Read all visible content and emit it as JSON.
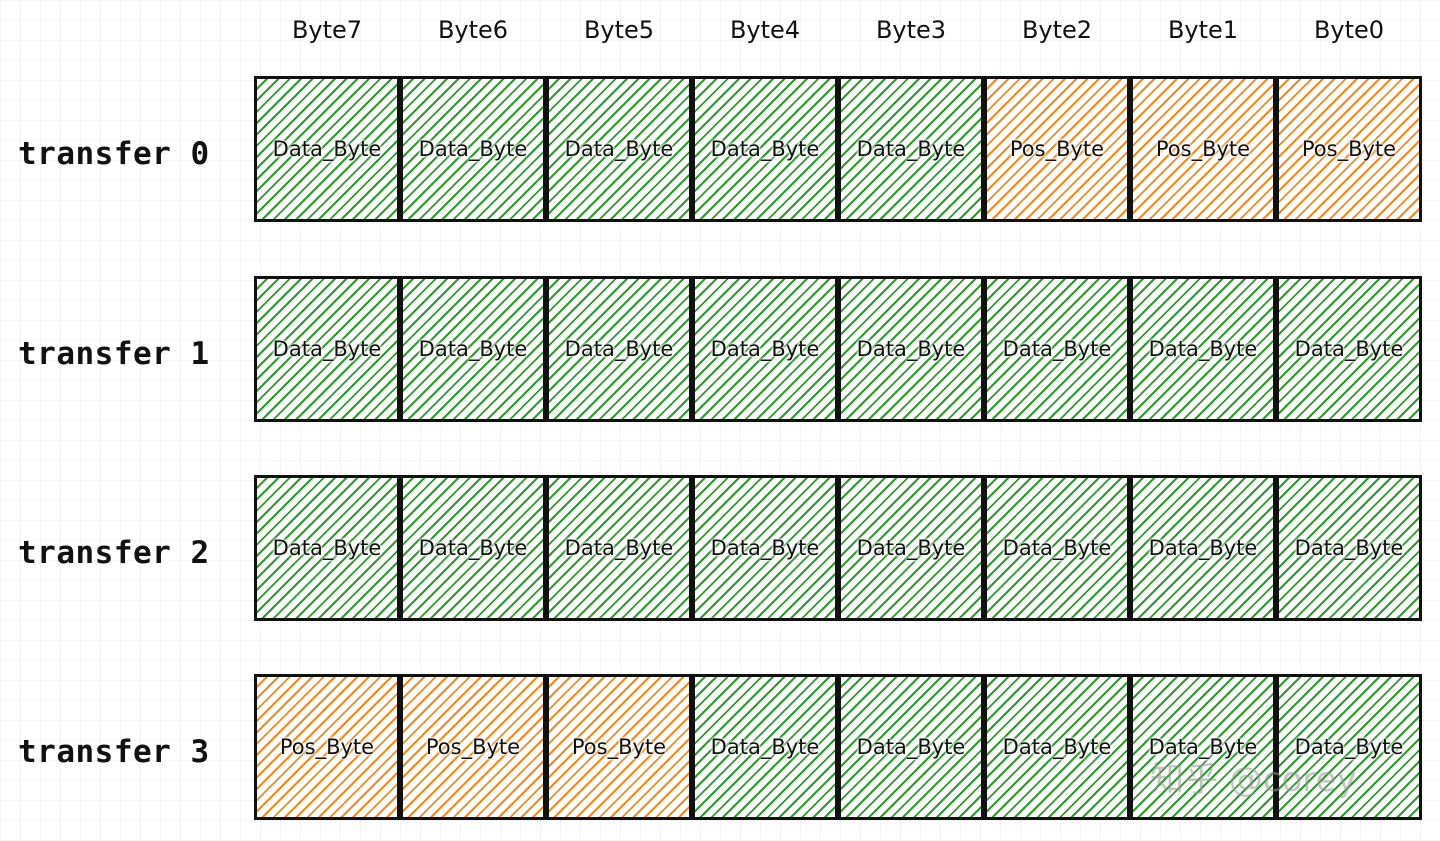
{
  "byte_headers": [
    "Byte7",
    "Byte6",
    "Byte5",
    "Byte4",
    "Byte3",
    "Byte2",
    "Byte1",
    "Byte0"
  ],
  "legend_colors": {
    "data": "#2e9a2e",
    "pos": "#f08a24"
  },
  "rows": [
    {
      "label": "transfer 0",
      "cells": [
        {
          "type": "data",
          "text": "Data_Byte"
        },
        {
          "type": "data",
          "text": "Data_Byte"
        },
        {
          "type": "data",
          "text": "Data_Byte"
        },
        {
          "type": "data",
          "text": "Data_Byte"
        },
        {
          "type": "data",
          "text": "Data_Byte"
        },
        {
          "type": "pos",
          "text": "Pos_Byte"
        },
        {
          "type": "pos",
          "text": "Pos_Byte"
        },
        {
          "type": "pos",
          "text": "Pos_Byte"
        }
      ]
    },
    {
      "label": "transfer 1",
      "cells": [
        {
          "type": "data",
          "text": "Data_Byte"
        },
        {
          "type": "data",
          "text": "Data_Byte"
        },
        {
          "type": "data",
          "text": "Data_Byte"
        },
        {
          "type": "data",
          "text": "Data_Byte"
        },
        {
          "type": "data",
          "text": "Data_Byte"
        },
        {
          "type": "data",
          "text": "Data_Byte"
        },
        {
          "type": "data",
          "text": "Data_Byte"
        },
        {
          "type": "data",
          "text": "Data_Byte"
        }
      ]
    },
    {
      "label": "transfer 2",
      "cells": [
        {
          "type": "data",
          "text": "Data_Byte"
        },
        {
          "type": "data",
          "text": "Data_Byte"
        },
        {
          "type": "data",
          "text": "Data_Byte"
        },
        {
          "type": "data",
          "text": "Data_Byte"
        },
        {
          "type": "data",
          "text": "Data_Byte"
        },
        {
          "type": "data",
          "text": "Data_Byte"
        },
        {
          "type": "data",
          "text": "Data_Byte"
        },
        {
          "type": "data",
          "text": "Data_Byte"
        }
      ]
    },
    {
      "label": "transfer 3",
      "cells": [
        {
          "type": "pos",
          "text": "Pos_Byte"
        },
        {
          "type": "pos",
          "text": "Pos_Byte"
        },
        {
          "type": "pos",
          "text": "Pos_Byte"
        },
        {
          "type": "data",
          "text": "Data_Byte"
        },
        {
          "type": "data",
          "text": "Data_Byte"
        },
        {
          "type": "data",
          "text": "Data_Byte"
        },
        {
          "type": "data",
          "text": "Data_Byte"
        },
        {
          "type": "data",
          "text": "Data_Byte"
        }
      ]
    }
  ],
  "watermark": "知乎 @corey"
}
